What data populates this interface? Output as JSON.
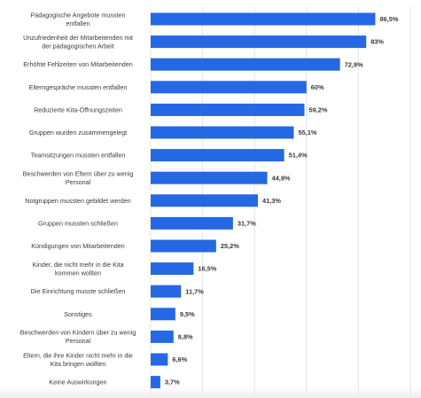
{
  "chart_data": {
    "type": "bar",
    "orientation": "horizontal",
    "categories": [
      [
        "Pädagogische Angebote mussten",
        "entfallen"
      ],
      [
        "Unzufriedenheit der Mitarbeitenden mit",
        "der pädagogischen Arbeit"
      ],
      [
        "Erhöhte Fehlzeiten von Mitarbeitenden"
      ],
      [
        "Elterngespräche mussten entfallen"
      ],
      [
        "Reduzierte Kita-Öffnungszeiten"
      ],
      [
        "Gruppen wurden zusammengelegt"
      ],
      [
        "Teamsitzungen mussten entfallen"
      ],
      [
        "Beschwerden von Eltern über zu wenig",
        "Personal"
      ],
      [
        "Notgruppen mussten gebildet werden"
      ],
      [
        "Gruppen mussten schließen"
      ],
      [
        "Kündigungen von Mitarbeitenden"
      ],
      [
        "Kinder, die nicht mehr in die Kita",
        "kommen wollten"
      ],
      [
        "Die Einrichtung musste schließen"
      ],
      [
        "Sonstiges"
      ],
      [
        "Beschwerden von Kindern über zu wenig",
        "Personal"
      ],
      [
        "Eltern, die ihre Kinder nicht mehr in die",
        "Kita bringen wollten"
      ],
      [
        "Keine Auswirkungen"
      ]
    ],
    "values": [
      86.5,
      83,
      72.9,
      60,
      59.2,
      55.1,
      51.4,
      44.9,
      41.3,
      31.7,
      25.2,
      16.5,
      11.7,
      9.5,
      8.8,
      6.6,
      3.7
    ],
    "value_labels": [
      "86,5%",
      "83%",
      "72,9%",
      "60%",
      "59,2%",
      "55,1%",
      "51,4%",
      "44,9%",
      "41,3%",
      "31,7%",
      "25,2%",
      "16,5%",
      "11,7%",
      "9,5%",
      "8,8%",
      "6,6%",
      "3,7%"
    ],
    "xlim": [
      0,
      100
    ],
    "grid": true,
    "bar_color": "#2468e3",
    "title": "",
    "xlabel": "",
    "ylabel": ""
  }
}
